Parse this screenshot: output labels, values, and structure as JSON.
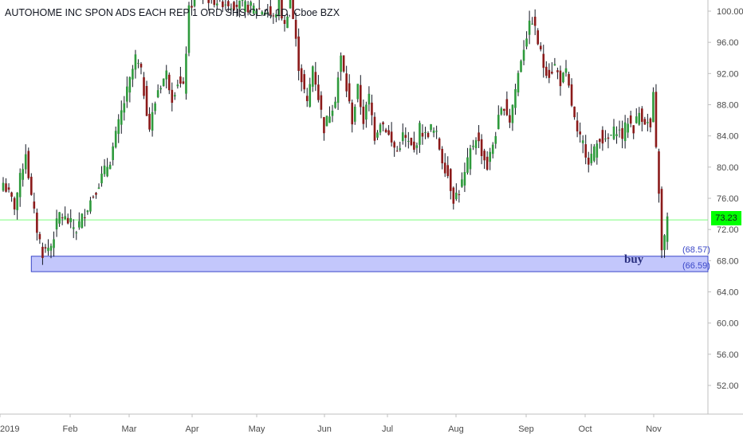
{
  "header": {
    "title": "AUTOHOME INC SPON ADS EACH REP 1 ORD SHS CL A, 1D, Cboe BZX"
  },
  "last_price_label": "73.23",
  "annotations": {
    "zone_high_label": "(68.57)",
    "zone_low_label": "(66.59)",
    "zone_text": "buy"
  },
  "colors": {
    "up": "#2e9a3c",
    "down": "#8b1a1a",
    "wick": "#131722",
    "price_line": "#7cfc7c",
    "zone_fill": "#b8bdfb",
    "zone_border": "#3a47c8",
    "axis_text": "#4a4a4a"
  },
  "chart_data": {
    "type": "candlestick",
    "title": "AUTOHOME INC SPON ADS EACH REP 1 ORD SHS CL A, 1D, Cboe BZX",
    "ylim": [
      48,
      103
    ],
    "y_ticks": [
      "100.00",
      "96.00",
      "92.00",
      "88.00",
      "84.00",
      "80.00",
      "76.00",
      "72.00",
      "68.00",
      "64.00",
      "60.00",
      "56.00",
      "52.00"
    ],
    "x_ticks": [
      "2019",
      "Feb",
      "Mar",
      "Apr",
      "May",
      "Jun",
      "Jul",
      "Aug",
      "Sep",
      "Oct",
      "Nov"
    ],
    "grid": false,
    "last_price": 73.23,
    "buy_zone": {
      "high": 68.57,
      "low": 66.59
    },
    "anchors": [
      {
        "i": 0,
        "c": 78
      },
      {
        "i": 4,
        "c": 75
      },
      {
        "i": 8,
        "c": 82
      },
      {
        "i": 10,
        "c": 76
      },
      {
        "i": 12,
        "c": 72
      },
      {
        "i": 14,
        "c": 69
      },
      {
        "i": 17,
        "c": 70
      },
      {
        "i": 20,
        "c": 74
      },
      {
        "i": 23,
        "c": 73
      },
      {
        "i": 26,
        "c": 72
      },
      {
        "i": 30,
        "c": 75
      },
      {
        "i": 34,
        "c": 78
      },
      {
        "i": 38,
        "c": 81
      },
      {
        "i": 42,
        "c": 87
      },
      {
        "i": 45,
        "c": 91
      },
      {
        "i": 47,
        "c": 94
      },
      {
        "i": 49,
        "c": 92
      },
      {
        "i": 52,
        "c": 85
      },
      {
        "i": 55,
        "c": 90
      },
      {
        "i": 58,
        "c": 92
      },
      {
        "i": 60,
        "c": 89
      },
      {
        "i": 62,
        "c": 91
      },
      {
        "i": 64,
        "c": 90
      },
      {
        "i": 66,
        "c": 100
      },
      {
        "i": 68,
        "c": 102
      },
      {
        "i": 94,
        "c": 100
      },
      {
        "i": 96,
        "c": 99
      },
      {
        "i": 98,
        "c": 101
      },
      {
        "i": 100,
        "c": 98
      },
      {
        "i": 102,
        "c": 102
      },
      {
        "i": 105,
        "c": 93
      },
      {
        "i": 108,
        "c": 88
      },
      {
        "i": 110,
        "c": 93
      },
      {
        "i": 112,
        "c": 89
      },
      {
        "i": 114,
        "c": 85
      },
      {
        "i": 116,
        "c": 87
      },
      {
        "i": 118,
        "c": 89
      },
      {
        "i": 120,
        "c": 94
      },
      {
        "i": 122,
        "c": 90
      },
      {
        "i": 124,
        "c": 86
      },
      {
        "i": 126,
        "c": 90
      },
      {
        "i": 128,
        "c": 86
      },
      {
        "i": 130,
        "c": 89
      },
      {
        "i": 132,
        "c": 84
      },
      {
        "i": 134,
        "c": 86
      },
      {
        "i": 136,
        "c": 85
      },
      {
        "i": 138,
        "c": 83
      },
      {
        "i": 140,
        "c": 82
      },
      {
        "i": 142,
        "c": 84
      },
      {
        "i": 144,
        "c": 83
      },
      {
        "i": 146,
        "c": 82
      },
      {
        "i": 148,
        "c": 85
      },
      {
        "i": 150,
        "c": 84
      },
      {
        "i": 152,
        "c": 85
      },
      {
        "i": 154,
        "c": 84
      },
      {
        "i": 156,
        "c": 81
      },
      {
        "i": 158,
        "c": 79
      },
      {
        "i": 160,
        "c": 76
      },
      {
        "i": 162,
        "c": 77
      },
      {
        "i": 164,
        "c": 79
      },
      {
        "i": 166,
        "c": 82
      },
      {
        "i": 168,
        "c": 84
      },
      {
        "i": 170,
        "c": 82
      },
      {
        "i": 172,
        "c": 80
      },
      {
        "i": 174,
        "c": 83
      },
      {
        "i": 176,
        "c": 86
      },
      {
        "i": 178,
        "c": 88
      },
      {
        "i": 180,
        "c": 86
      },
      {
        "i": 182,
        "c": 90
      },
      {
        "i": 184,
        "c": 94
      },
      {
        "i": 186,
        "c": 97
      },
      {
        "i": 188,
        "c": 99
      },
      {
        "i": 190,
        "c": 96
      },
      {
        "i": 192,
        "c": 93
      },
      {
        "i": 194,
        "c": 92
      },
      {
        "i": 196,
        "c": 93
      },
      {
        "i": 198,
        "c": 91
      },
      {
        "i": 200,
        "c": 92
      },
      {
        "i": 202,
        "c": 88
      },
      {
        "i": 204,
        "c": 84
      },
      {
        "i": 206,
        "c": 83
      },
      {
        "i": 208,
        "c": 81
      },
      {
        "i": 210,
        "c": 82
      },
      {
        "i": 212,
        "c": 84
      },
      {
        "i": 214,
        "c": 83
      },
      {
        "i": 216,
        "c": 84
      },
      {
        "i": 218,
        "c": 85
      },
      {
        "i": 220,
        "c": 84
      },
      {
        "i": 222,
        "c": 86
      },
      {
        "i": 224,
        "c": 85
      },
      {
        "i": 226,
        "c": 87
      },
      {
        "i": 228,
        "c": 86
      },
      {
        "i": 230,
        "c": 85
      },
      {
        "i": 231,
        "c": 89
      },
      {
        "i": 232,
        "c": 82
      },
      {
        "i": 233,
        "c": 77
      },
      {
        "i": 234,
        "c": 69
      },
      {
        "i": 235,
        "c": 71
      },
      {
        "i": 236,
        "c": 73.23
      }
    ],
    "n_candles": 237
  }
}
